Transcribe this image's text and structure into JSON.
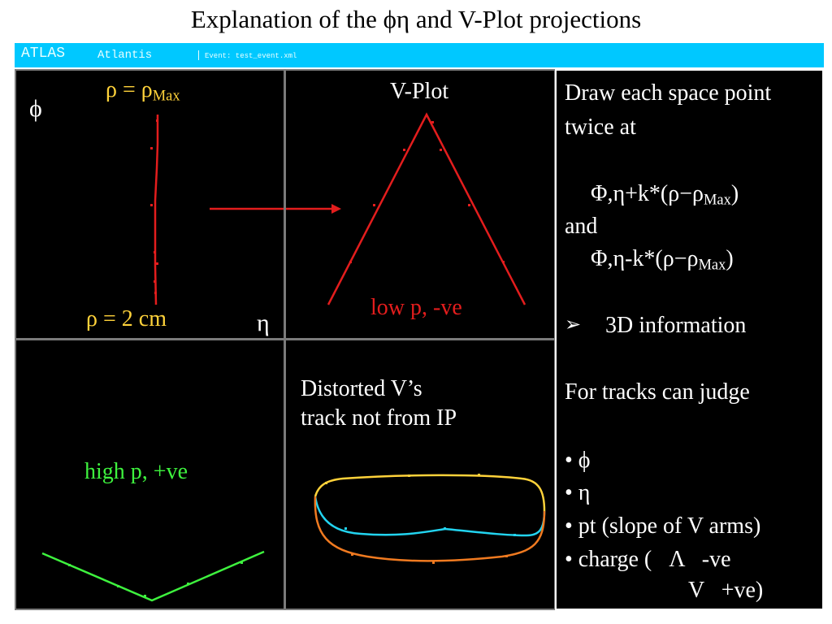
{
  "title": "Explanation of the ϕη and V-Plot projections",
  "app_bar": {
    "atlas": "ATLAS",
    "atlantis": "Atlantis",
    "event": "Event: test_event.xml",
    "color": "#00c8ff"
  },
  "panel_phi_eta": {
    "rho_max_prefix": "ρ = ρ",
    "rho_max_sub": "Max",
    "phi_axis": "ϕ",
    "rho_2cm": "ρ = 2 cm",
    "eta_axis": "η"
  },
  "panel_vplot": {
    "title": "V-Plot",
    "caption": "low p, -ve"
  },
  "panel_high_p": {
    "caption": "high p, +ve"
  },
  "panel_distorted": {
    "line1": "Distorted V’s",
    "line2": "track not from IP"
  },
  "text_box": {
    "l1": "Draw each space point",
    "l2": "twice at",
    "f1_main": "Φ,η+k*(ρ−ρ",
    "f1_sub": "Max",
    "f1_end": ")",
    "l3": "and",
    "f2_main": "Φ,η-k*(ρ−ρ",
    "f2_sub": "Max",
    "f2_end": ")",
    "arrow_bullet": "➢",
    "l4": "3D information",
    "l5": "For tracks can judge",
    "b1": "• ϕ",
    "b2": "• η",
    "b3": "• pt (slope of V arms)",
    "b4": "• charge (   Λ   -ve",
    "b5": "V   +ve)"
  },
  "colors": {
    "red": "#e31d1d",
    "yellow": "#ffd23a",
    "green": "#3ef23e",
    "cyan": "#22d4f0",
    "orange": "#f07a20"
  }
}
